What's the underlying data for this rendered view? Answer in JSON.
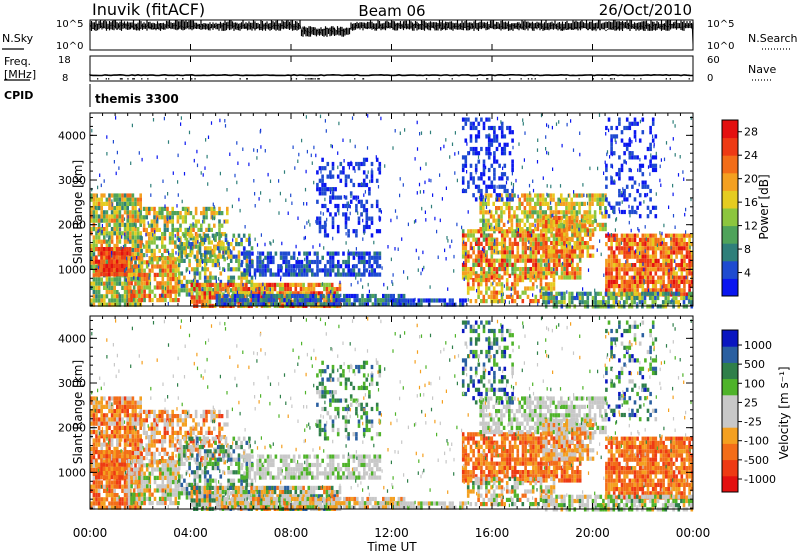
{
  "header": {
    "station": "Inuvik (fitACF)",
    "beam": "Beam 06",
    "date": "26/Oct/2010"
  },
  "left_labels": {
    "nsky": "N.Sky",
    "freq": "Freq.",
    "freq_unit": "[MHz]",
    "cpid": "CPID"
  },
  "right_labels": {
    "nsearch": "N.Search",
    "nave": "Nave"
  },
  "cpid_value": "themis 3300",
  "colors": {
    "power_scale": [
      "#0a16f0",
      "#1f4bd0",
      "#2f7f7a",
      "#4fa35a",
      "#8cc63e",
      "#e5cc20",
      "#f4a020",
      "#f36d18",
      "#ee3a14",
      "#e41010"
    ],
    "velocity_scale": [
      "#e41010",
      "#ee3a14",
      "#f36d18",
      "#f4a020",
      "#c8c8c8",
      "#c8c8c8",
      "#4fb32a",
      "#2f7f4a",
      "#2a5fa0",
      "#0a16c0"
    ]
  },
  "chart_data": [
    {
      "type": "line",
      "panel": "noise",
      "left_ticks": [
        "10^5",
        "10^0"
      ],
      "right_ticks": [
        "10^5",
        "10^0"
      ]
    },
    {
      "type": "line",
      "panel": "frequency",
      "left_ticks": [
        "18",
        "8"
      ],
      "right_ticks": [
        "60",
        "0"
      ],
      "values_mhz_approx": 10.2
    },
    {
      "type": "heatmap",
      "panel": "power",
      "ylabel": "Slant Range [km]",
      "y_ticks": [
        "1000",
        "2000",
        "3000",
        "4000"
      ],
      "ylim": [
        180,
        4500
      ],
      "colorbar": {
        "label": "Power [dB]",
        "ticks": [
          "4",
          "8",
          "12",
          "16",
          "20",
          "24",
          "28"
        ],
        "range": [
          0,
          30
        ]
      }
    },
    {
      "type": "heatmap",
      "panel": "velocity",
      "ylabel": "Slant Range [km]",
      "y_ticks": [
        "1000",
        "2000",
        "3000",
        "4000"
      ],
      "ylim": [
        180,
        4500
      ],
      "colorbar": {
        "label": "Velocity [m s⁻¹]",
        "ticks": [
          "1000",
          "500",
          "100",
          "25",
          "-25",
          "-100",
          "-500",
          "-1000"
        ]
      }
    }
  ],
  "x_axis": {
    "ticks": [
      "00:00",
      "04:00",
      "08:00",
      "12:00",
      "16:00",
      "20:00",
      "00:00"
    ],
    "label": "Time UT"
  }
}
